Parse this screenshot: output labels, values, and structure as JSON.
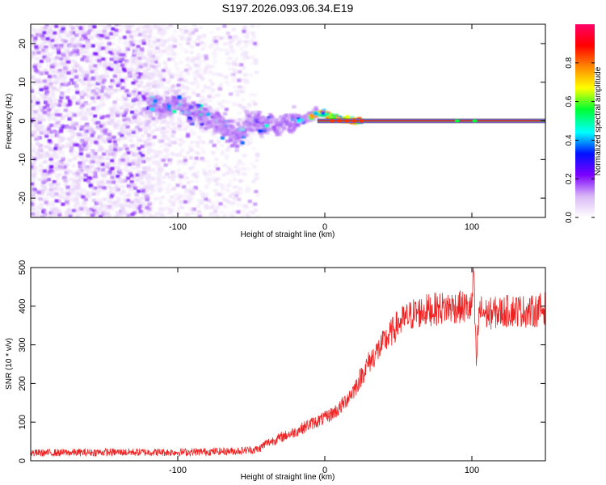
{
  "figure_title": "S197.2026.093.06.34.E19",
  "chart_data": [
    {
      "type": "heatmap",
      "title": "",
      "xlabel": "Height of straight line (km)",
      "ylabel": "Frequency (Hz)",
      "xlim": [
        -200,
        150
      ],
      "ylim": [
        -25,
        25
      ],
      "xticks": [
        -100,
        0,
        100
      ],
      "yticks": [
        -20,
        -10,
        0,
        10,
        20
      ],
      "grid": false,
      "colorbar": {
        "label": "Normalized spectral amplitude",
        "range": [
          0,
          1
        ],
        "ticks": [
          0.0,
          0.2,
          0.4,
          0.6,
          0.8
        ],
        "tick_labels": [
          "0.0",
          "0.2",
          "0.4",
          "0.6",
          "0.8"
        ],
        "colormap": [
          "#ffffff",
          "#d9b8f5",
          "#7b00ff",
          "#0011ff",
          "#00ffff",
          "#00ff30",
          "#ffff00",
          "#ff8800",
          "#ff0000",
          "#ff0066"
        ]
      },
      "regions": [
        {
          "x_range": [
            -200,
            -120
          ],
          "freq_range": [
            -25,
            25
          ],
          "amplitude": [
            0.05,
            0.3
          ],
          "description_level": "dense broadband noise"
        },
        {
          "x_range": [
            -120,
            -50
          ],
          "freq_range": [
            -25,
            25
          ],
          "amplitude": [
            0.03,
            0.15
          ],
          "description_level": "sparse broadband noise"
        },
        {
          "x_range": [
            -120,
            -10
          ],
          "freq_range": [
            -8,
            8
          ],
          "amplitude": [
            0.1,
            0.45
          ],
          "description_level": "wandering tone"
        },
        {
          "x_range": [
            -10,
            150
          ],
          "freq_range": [
            -1,
            1
          ],
          "amplitude": [
            0.6,
            1.0
          ],
          "description_level": "stable tone near 0 Hz"
        }
      ],
      "ridge": {
        "x": [
          -120,
          -110,
          -100,
          -90,
          -80,
          -70,
          -60,
          -50,
          -40,
          -30,
          -20,
          -10,
          -5,
          0,
          5,
          10,
          20,
          150
        ],
        "freq": [
          5,
          3,
          5,
          2,
          1,
          -1,
          -5,
          0,
          -1,
          -1,
          0,
          1,
          2,
          2,
          1,
          0.5,
          0,
          0
        ]
      }
    },
    {
      "type": "line",
      "title": "",
      "xlabel": "Height of straight line (km)",
      "ylabel": "SNR (10 * v/v)",
      "xlim": [
        -200,
        150
      ],
      "ylim": [
        0,
        500
      ],
      "xticks": [
        -100,
        0,
        100
      ],
      "yticks": [
        0,
        100,
        200,
        300,
        400,
        500
      ],
      "grid": false,
      "series": [
        {
          "name": "SNR",
          "color": "#ee2222",
          "x": [
            -200,
            -150,
            -100,
            -60,
            -45,
            -40,
            -30,
            -20,
            -10,
            0,
            10,
            20,
            30,
            40,
            50,
            60,
            70,
            80,
            90,
            100,
            101,
            103,
            105,
            110,
            120,
            130,
            140,
            150
          ],
          "values": [
            20,
            22,
            22,
            25,
            30,
            45,
            60,
            75,
            95,
            110,
            135,
            185,
            255,
            305,
            355,
            380,
            390,
            395,
            398,
            395,
            500,
            250,
            390,
            380,
            385,
            390,
            385,
            395
          ]
        }
      ]
    }
  ]
}
